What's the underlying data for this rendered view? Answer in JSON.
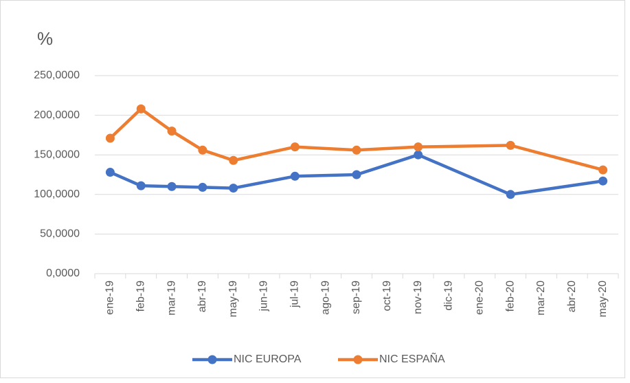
{
  "chart_data": {
    "type": "line",
    "title": "%",
    "categories": [
      "ene-19",
      "feb-19",
      "mar-19",
      "abr-19",
      "may-19",
      "jun-19",
      "jul-19",
      "ago-19",
      "sep-19",
      "oct-19",
      "nov-19",
      "dic-19",
      "ene-20",
      "feb-20",
      "mar-20",
      "abr-20",
      "may-20"
    ],
    "series": [
      {
        "name": "NIC EUROPA",
        "color": "#4472c4",
        "values": [
          128,
          111,
          110,
          109,
          108,
          null,
          123,
          null,
          125,
          null,
          150,
          null,
          null,
          100,
          null,
          null,
          117
        ]
      },
      {
        "name": "NIC ESPAÑA",
        "color": "#ed7d31",
        "values": [
          171,
          208,
          180,
          156,
          143,
          null,
          160,
          null,
          156,
          null,
          160,
          null,
          null,
          162,
          null,
          null,
          131
        ]
      }
    ],
    "ylim": [
      0,
      250
    ],
    "yticks": [
      {
        "value": 0,
        "label": "0,0000"
      },
      {
        "value": 50,
        "label": "50,0000"
      },
      {
        "value": 100,
        "label": "100,0000"
      },
      {
        "value": 150,
        "label": "150,0000"
      },
      {
        "value": 200,
        "label": "200,0000"
      },
      {
        "value": 250,
        "label": "250,0000"
      }
    ],
    "grid": true,
    "legend": "bottom"
  }
}
